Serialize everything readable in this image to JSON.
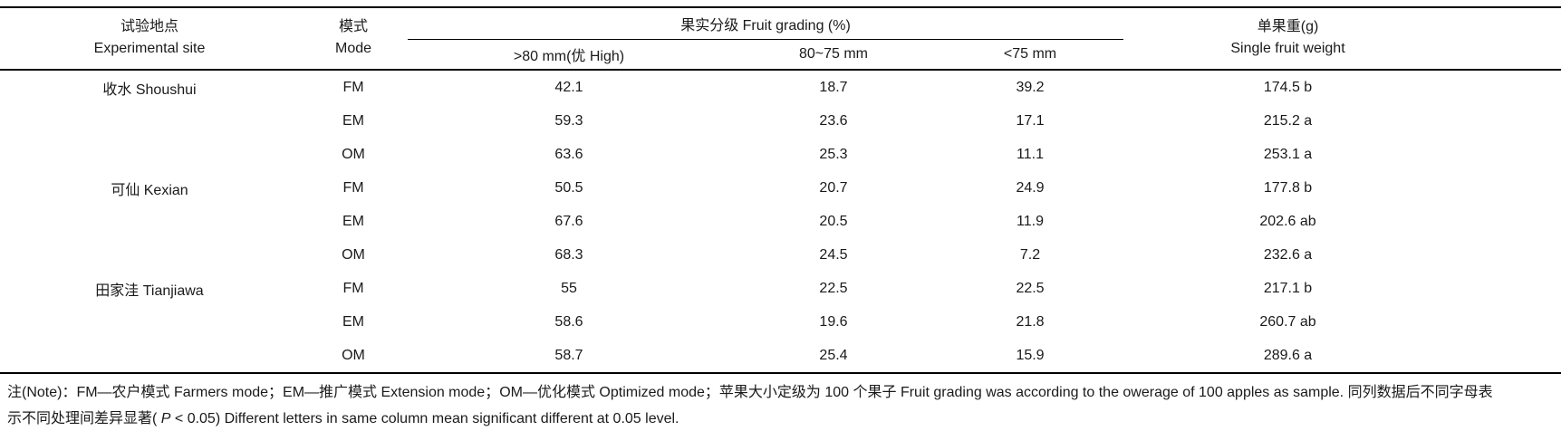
{
  "header": {
    "site_zh": "试验地点",
    "site_en": "Experimental site",
    "mode_zh": "模式",
    "mode_en": "Mode",
    "grading_group": "果实分级 Fruit grading (%)",
    "grading_sub_high": ">80 mm(优 High)",
    "grading_sub_mid": "80~75 mm",
    "grading_sub_low": "<75 mm",
    "weight_zh": "单果重(g)",
    "weight_en": "Single fruit weight"
  },
  "table": {
    "rows": [
      {
        "site": "收水 Shoushui",
        "mode": "FM",
        "g1": "42.1",
        "g2": "18.7",
        "g3": "39.2",
        "w": "174.5 b"
      },
      {
        "site": "",
        "mode": "EM",
        "g1": "59.3",
        "g2": "23.6",
        "g3": "17.1",
        "w": "215.2 a"
      },
      {
        "site": "",
        "mode": "OM",
        "g1": "63.6",
        "g2": "25.3",
        "g3": "11.1",
        "w": "253.1 a"
      },
      {
        "site": "可仙 Kexian",
        "mode": "FM",
        "g1": "50.5",
        "g2": "20.7",
        "g3": "24.9",
        "w": "177.8 b"
      },
      {
        "site": "",
        "mode": "EM",
        "g1": "67.6",
        "g2": "20.5",
        "g3": "11.9",
        "w": "202.6 ab"
      },
      {
        "site": "",
        "mode": "OM",
        "g1": "68.3",
        "g2": "24.5",
        "g3": "7.2",
        "w": "232.6 a"
      },
      {
        "site": "田家洼 Tianjiawa",
        "mode": "FM",
        "g1": "55",
        "g2": "22.5",
        "g3": "22.5",
        "w": "217.1 b"
      },
      {
        "site": "",
        "mode": "EM",
        "g1": "58.6",
        "g2": "19.6",
        "g3": "21.8",
        "w": "260.7 ab"
      },
      {
        "site": "",
        "mode": "OM",
        "g1": "58.7",
        "g2": "25.4",
        "g3": "15.9",
        "w": "289.6 a"
      }
    ]
  },
  "note": {
    "line1": "注(Note)：FM—农户模式 Farmers mode；EM—推广模式 Extension mode；OM—优化模式 Optimized mode；苹果大小定级为 100 个果子 Fruit grading was according to the owerage of 100 apples as sample. 同列数据后不同字母表",
    "line2_pre": "示不同处理间差异显著( ",
    "line2_p": "P",
    "line2_post": " < 0.05) Different letters in same column mean significant different at 0.05 level."
  },
  "colors": {
    "background": "#ffffff",
    "text": "#1a1a1a",
    "rule": "#000000"
  }
}
